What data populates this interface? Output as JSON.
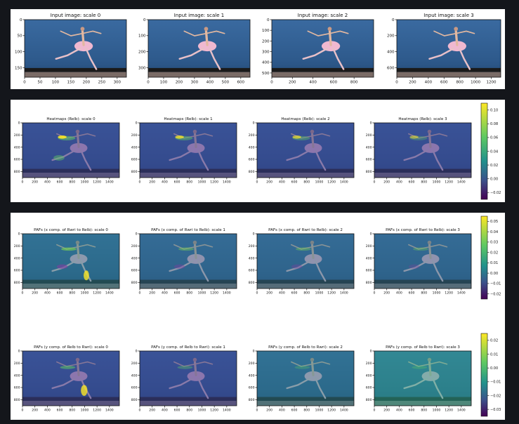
{
  "colors": {
    "page_bg": "#14161b",
    "panel_bg": "#ffffff",
    "photo_sky": "#2e5a8c",
    "photo_floor": "#1a1a1a",
    "photo_stage": "#7a6b66",
    "dancer_tutu": "#f0b8d0",
    "dancer_skin": "#e2b8a0",
    "viridis_low": "#440154",
    "viridis_mid": "#21918c",
    "viridis_high": "#fde725"
  },
  "chart_data": [
    {
      "type": "image",
      "title": "Input image: scale 0",
      "x_ticks": [
        "0",
        "50",
        "100",
        "150",
        "200",
        "250",
        "300"
      ],
      "y_ticks": [
        "0",
        "50",
        "100",
        "150"
      ],
      "xlim": [
        0,
        330
      ],
      "ylim": [
        0,
        180
      ]
    },
    {
      "type": "image",
      "title": "Input image: scale 1",
      "x_ticks": [
        "0",
        "100",
        "200",
        "300",
        "400",
        "500",
        "600"
      ],
      "y_ticks": [
        "0",
        "100",
        "200",
        "300"
      ],
      "xlim": [
        0,
        660
      ],
      "ylim": [
        0,
        360
      ]
    },
    {
      "type": "image",
      "title": "Input image: scale 2",
      "x_ticks": [
        "0",
        "200",
        "400",
        "600",
        "800"
      ],
      "y_ticks": [
        "0",
        "100",
        "200",
        "300",
        "400",
        "500"
      ],
      "xlim": [
        0,
        990
      ],
      "ylim": [
        0,
        540
      ]
    },
    {
      "type": "image",
      "title": "Input image: scale 3",
      "x_ticks": [
        "0",
        "200",
        "400",
        "600",
        "800",
        "1000",
        "1200"
      ],
      "y_ticks": [
        "0",
        "200",
        "400",
        "600"
      ],
      "xlim": [
        0,
        1320
      ],
      "ylim": [
        0,
        720
      ]
    },
    {
      "type": "heatmap",
      "titles": [
        "Heatmaps (Relb): scale 0",
        "Heatmaps (Relb): scale 1",
        "Heatmaps (Relb): scale 2",
        "Heatmaps (Relb): scale 3"
      ],
      "x_ticks": [
        "0",
        "200",
        "400",
        "600",
        "800",
        "1000",
        "1200",
        "1400"
      ],
      "y_ticks": [
        "0",
        "200",
        "400",
        "600",
        "800"
      ],
      "xlim": [
        0,
        1560
      ],
      "ylim": [
        0,
        900
      ],
      "colorbar": {
        "ticks": [
          "0.10",
          "0.08",
          "0.06",
          "0.04",
          "0.02",
          "0.00",
          "−0.02"
        ],
        "range": [
          -0.03,
          0.11
        ]
      }
    },
    {
      "type": "heatmap",
      "titles": [
        "PAFs (x comp. of Rwri to Relb): scale 0",
        "PAFs (x comp. of Rwri to Relb): scale 1",
        "PAFs (x comp. of Rwri to Relb): scale 2",
        "PAFs (x comp. of Rwri to Relb): scale 3"
      ],
      "x_ticks": [
        "0",
        "200",
        "400",
        "600",
        "800",
        "1000",
        "1200",
        "1400"
      ],
      "y_ticks": [
        "0",
        "200",
        "400",
        "600",
        "800"
      ],
      "xlim": [
        0,
        1560
      ],
      "ylim": [
        0,
        900
      ],
      "colorbar": {
        "ticks": [
          "0.05",
          "0.04",
          "0.03",
          "0.02",
          "0.01",
          "0.00",
          "−0.01",
          "−0.02"
        ],
        "range": [
          -0.025,
          0.055
        ]
      }
    },
    {
      "type": "heatmap",
      "titles": [
        "PAFs (y comp. of Relb to Rwri): scale 0",
        "PAFs (y comp. of Relb to Rwri): scale 1",
        "PAFs (y comp. of Relb to Rwri): scale 2",
        "PAFs (y comp. of Relb to Rwri): scale 3"
      ],
      "x_ticks": [
        "0",
        "200",
        "400",
        "600",
        "800",
        "1000",
        "1200",
        "1400"
      ],
      "y_ticks": [
        "0",
        "200",
        "400",
        "600",
        "800"
      ],
      "xlim": [
        0,
        1560
      ],
      "ylim": [
        0,
        900
      ],
      "colorbar": {
        "ticks": [
          "0.02",
          "0.01",
          "0.00",
          "−0.01",
          "−0.02",
          "−0.03"
        ],
        "range": [
          -0.035,
          0.025
        ]
      }
    }
  ]
}
